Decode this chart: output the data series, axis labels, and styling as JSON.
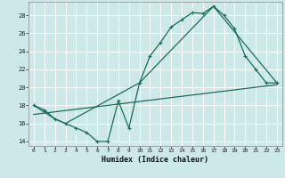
{
  "xlabel": "Humidex (Indice chaleur)",
  "bg_color": "#cce8e8",
  "grid_color": "#ffffff",
  "line_color": "#1a6b5a",
  "xlim": [
    -0.5,
    23.5
  ],
  "ylim": [
    13.5,
    29.5
  ],
  "yticks": [
    14,
    16,
    18,
    20,
    22,
    24,
    26,
    28
  ],
  "xticks": [
    0,
    1,
    2,
    3,
    4,
    5,
    6,
    7,
    8,
    9,
    10,
    11,
    12,
    13,
    14,
    15,
    16,
    17,
    18,
    19,
    20,
    21,
    22,
    23
  ],
  "line1_x": [
    0,
    1,
    2,
    3,
    4,
    5,
    6,
    7,
    8,
    9,
    10,
    11,
    12,
    13,
    14,
    15,
    16,
    17,
    18,
    19,
    20,
    21,
    22,
    23
  ],
  "line1_y": [
    18.0,
    17.5,
    16.5,
    16.0,
    15.5,
    15.0,
    14.0,
    14.0,
    18.5,
    15.5,
    20.5,
    23.5,
    25.0,
    26.7,
    27.5,
    28.3,
    28.2,
    29.0,
    28.0,
    26.5,
    23.5,
    22.0,
    20.5,
    20.5
  ],
  "line2_x": [
    0,
    2,
    3,
    10,
    17,
    23
  ],
  "line2_y": [
    18.0,
    16.5,
    16.0,
    20.5,
    29.0,
    20.5
  ],
  "line3_x": [
    0,
    23
  ],
  "line3_y": [
    17.0,
    20.3
  ]
}
